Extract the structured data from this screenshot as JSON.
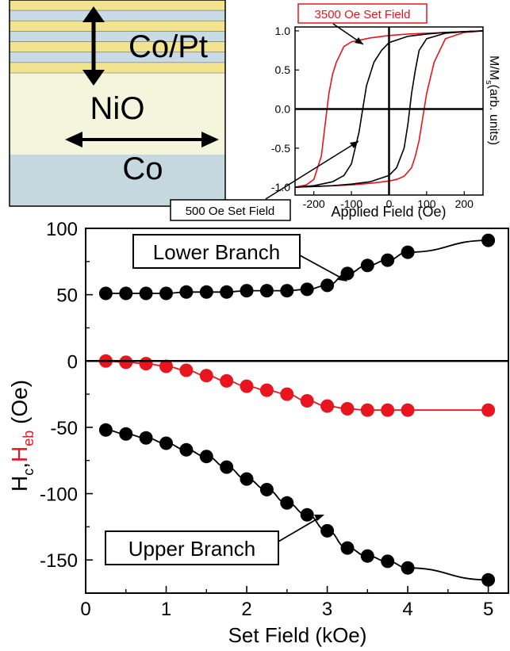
{
  "stack_diagram": {
    "layer_top_label": "Co/Pt",
    "layer_mid_label": "NiO",
    "layer_bottom_label": "Co",
    "colors": {
      "yellow": "#f2e38e",
      "blue": "#c8dae3",
      "nio": "#f3f5dc",
      "co": "#c5d8df"
    }
  },
  "chart_data": [
    {
      "type": "line",
      "title": "",
      "xlabel": "Applied Field (Oe)",
      "ylabel_main": "M/M",
      "ylabel_sub": "s",
      "ylabel_tail": "(arb. units)",
      "xlim": [
        -250,
        250
      ],
      "ylim": [
        -1.1,
        1.05
      ],
      "xticks": [
        -200,
        -100,
        0,
        100,
        200
      ],
      "yticks": [
        1.0,
        0.5,
        0.0,
        -0.5,
        -1.0
      ],
      "xtick_labels": [
        "-200",
        "-100",
        "0",
        "100",
        "200"
      ],
      "ytick_labels": [
        "1.0",
        "0.5",
        "0.0",
        "-0.5",
        "-1.0"
      ],
      "annotations": [
        {
          "text": "3500 Oe Set Field",
          "color": "#e8141e"
        },
        {
          "text": "500 Oe Set Field",
          "color": "#000000"
        }
      ],
      "series": [
        {
          "color": "#e8141e",
          "x": [
            -250,
            -220,
            -200,
            -180,
            -170,
            -160,
            -150,
            -140,
            -130,
            -120,
            -100,
            -80,
            -50,
            0,
            50,
            100,
            150,
            200,
            250
          ],
          "y": [
            -1.0,
            -0.97,
            -0.9,
            -0.6,
            -0.2,
            0.2,
            0.45,
            0.6,
            0.7,
            0.8,
            0.86,
            0.88,
            0.91,
            0.94,
            0.96,
            0.97,
            0.98,
            0.99,
            1.0
          ]
        },
        {
          "color": "#e8141e",
          "x": [
            250,
            200,
            150,
            120,
            100,
            90,
            80,
            70,
            60,
            40,
            20,
            0,
            -50,
            -100,
            -150,
            -200,
            -250
          ],
          "y": [
            1.0,
            0.98,
            0.9,
            0.6,
            0.2,
            -0.1,
            -0.4,
            -0.6,
            -0.75,
            -0.86,
            -0.9,
            -0.92,
            -0.95,
            -0.97,
            -0.98,
            -0.99,
            -1.0
          ]
        },
        {
          "color": "#000000",
          "x": [
            -250,
            -200,
            -150,
            -120,
            -100,
            -90,
            -80,
            -70,
            -60,
            -40,
            -20,
            0,
            50,
            100,
            150,
            200,
            250
          ],
          "y": [
            -1.0,
            -0.98,
            -0.93,
            -0.85,
            -0.7,
            -0.5,
            -0.3,
            0.0,
            0.3,
            0.6,
            0.75,
            0.85,
            0.93,
            0.96,
            0.98,
            0.99,
            1.0
          ]
        },
        {
          "color": "#000000",
          "x": [
            250,
            200,
            150,
            100,
            80,
            70,
            60,
            50,
            40,
            20,
            0,
            -50,
            -100,
            -150,
            -200,
            -250
          ],
          "y": [
            1.0,
            0.99,
            0.97,
            0.9,
            0.75,
            0.5,
            0.2,
            -0.2,
            -0.5,
            -0.75,
            -0.85,
            -0.93,
            -0.96,
            -0.98,
            -0.99,
            -1.0
          ]
        }
      ]
    },
    {
      "type": "line",
      "title": "",
      "xlabel": "Set Field (kOe)",
      "ylabel_parts": [
        "H",
        "c",
        ",",
        "H",
        "eb",
        " (Oe)"
      ],
      "xlim": [
        0,
        5.25
      ],
      "ylim": [
        -175,
        100
      ],
      "xticks": [
        0,
        1,
        2,
        3,
        4,
        5
      ],
      "yticks": [
        100,
        50,
        0,
        -50,
        -100,
        -150
      ],
      "xtick_labels": [
        "0",
        "1",
        "2",
        "3",
        "4",
        "5"
      ],
      "ytick_labels": [
        "100",
        "50",
        "0",
        "-50",
        "-100",
        "-150"
      ],
      "annotations": [
        {
          "text": "Lower Branch"
        },
        {
          "text": "Upper Branch"
        }
      ],
      "series": [
        {
          "color": "#000000",
          "x": [
            0.25,
            0.5,
            0.75,
            1.0,
            1.25,
            1.5,
            1.75,
            2.0,
            2.25,
            2.5,
            2.75,
            3.0,
            3.25,
            3.5,
            3.75,
            4.0,
            5.0
          ],
          "y": [
            51,
            51,
            51,
            51,
            52,
            52,
            52,
            53,
            53,
            53,
            54,
            57,
            66,
            72,
            76,
            82,
            91
          ]
        },
        {
          "color": "#e8141e",
          "x": [
            0.25,
            0.5,
            0.75,
            1.0,
            1.25,
            1.5,
            1.75,
            2.0,
            2.25,
            2.5,
            2.75,
            3.0,
            3.25,
            3.5,
            3.75,
            4.0,
            5.0
          ],
          "y": [
            0,
            -1,
            -2,
            -4,
            -7,
            -11,
            -15,
            -19,
            -22,
            -25,
            -30,
            -34,
            -36,
            -37,
            -37,
            -37,
            -37
          ]
        },
        {
          "color": "#000000",
          "x": [
            0.25,
            0.5,
            0.75,
            1.0,
            1.25,
            1.5,
            1.75,
            2.0,
            2.25,
            2.5,
            2.75,
            3.0,
            3.25,
            3.5,
            3.75,
            4.0,
            5.0
          ],
          "y": [
            -52,
            -55,
            -58,
            -62,
            -67,
            -72,
            -80,
            -89,
            -97,
            -107,
            -116,
            -128,
            -141,
            -147,
            -151,
            -156,
            -165
          ]
        }
      ]
    }
  ]
}
